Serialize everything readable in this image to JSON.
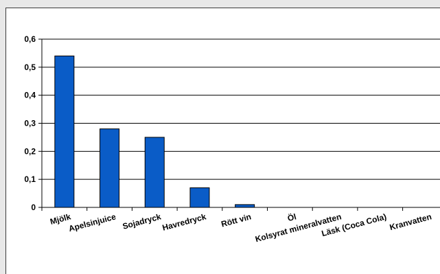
{
  "chart_data": {
    "type": "bar",
    "categories": [
      "Mjölk",
      "Apelsinjuice",
      "Sojadryck",
      "Havredryck",
      "Rött vin",
      "Öl",
      "Kolsyrat mineralvatten",
      "Läsk (Coca Cola)",
      "Kranvatten"
    ],
    "values": [
      0.54,
      0.28,
      0.25,
      0.07,
      0.01,
      0,
      0,
      0,
      0
    ],
    "ylim": [
      0,
      0.6
    ],
    "yticks": [
      "0",
      "0,1",
      "0,2",
      "0,3",
      "0,4",
      "0,5",
      "0,6"
    ],
    "ytick_values": [
      0,
      0.1,
      0.2,
      0.3,
      0.4,
      0.5,
      0.6
    ],
    "title": "",
    "xlabel": "",
    "ylabel": "",
    "grid": true,
    "legend": "none",
    "bar_color": "#0a5cc7",
    "bar_edge_color": "#000000"
  }
}
